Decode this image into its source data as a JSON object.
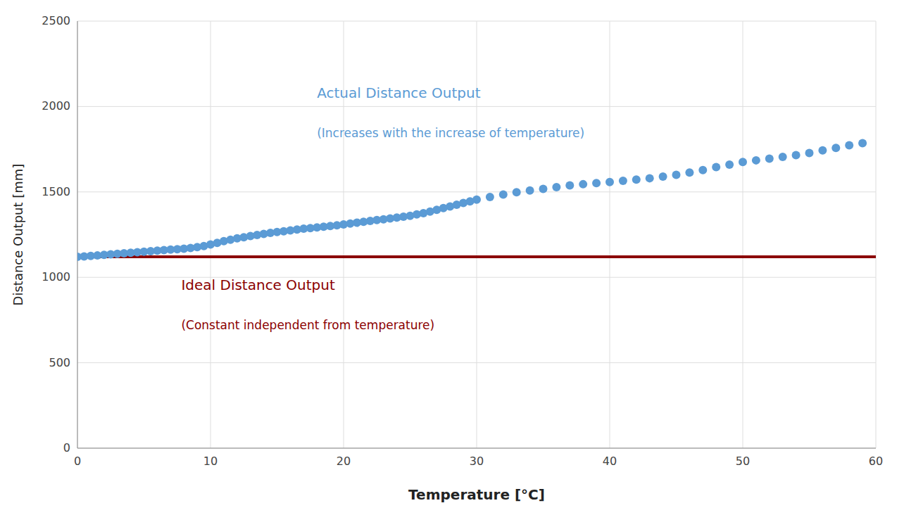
{
  "chart_data": {
    "type": "scatter",
    "xlabel": "Temperature [°C]",
    "ylabel": "Distance Output [mm]",
    "xlim": [
      0,
      60
    ],
    "ylim": [
      0,
      2500
    ],
    "xticks": [
      0,
      10,
      20,
      30,
      40,
      50,
      60
    ],
    "yticks": [
      0,
      500,
      1000,
      1500,
      2000,
      2500
    ],
    "grid": true,
    "x": [
      0.0,
      0.5,
      1.0,
      1.5,
      2.0,
      2.5,
      3.0,
      3.5,
      4.0,
      4.5,
      5.0,
      5.5,
      6.0,
      6.5,
      7.0,
      7.5,
      8.0,
      8.5,
      9.0,
      9.5,
      10.0,
      10.5,
      11.0,
      11.5,
      12.0,
      12.5,
      13.0,
      13.5,
      14.0,
      14.5,
      15.0,
      15.5,
      16.0,
      16.5,
      17.0,
      17.5,
      18.0,
      18.5,
      19.0,
      19.5,
      20.0,
      20.5,
      21.0,
      21.5,
      22.0,
      22.5,
      23.0,
      23.5,
      24.0,
      24.5,
      25.0,
      25.5,
      26.0,
      26.5,
      27.0,
      27.5,
      28.0,
      28.5,
      29.0,
      29.5,
      30.0,
      31.0,
      32.0,
      33.0,
      34.0,
      35.0,
      36.0,
      37.0,
      38.0,
      39.0,
      40.0,
      41.0,
      42.0,
      43.0,
      44.0,
      45.0,
      46.0,
      47.0,
      48.0,
      49.0,
      50.0,
      51.0,
      52.0,
      53.0,
      54.0,
      55.0,
      56.0,
      57.0,
      58.0,
      59.0
    ],
    "series": [
      {
        "color": "#5B9BD5",
        "marker": "circle",
        "values": [
          1120,
          1122,
          1125,
          1128,
          1132,
          1135,
          1138,
          1141,
          1144,
          1147,
          1150,
          1153,
          1156,
          1159,
          1162,
          1165,
          1168,
          1172,
          1177,
          1183,
          1192,
          1202,
          1212,
          1220,
          1228,
          1235,
          1242,
          1248,
          1254,
          1260,
          1265,
          1270,
          1275,
          1280,
          1285,
          1288,
          1292,
          1296,
          1300,
          1305,
          1310,
          1315,
          1320,
          1325,
          1330,
          1335,
          1340,
          1345,
          1350,
          1355,
          1360,
          1368,
          1376,
          1385,
          1395,
          1405,
          1415,
          1425,
          1435,
          1445,
          1455,
          1470,
          1485,
          1498,
          1508,
          1518,
          1528,
          1538,
          1545,
          1552,
          1558,
          1565,
          1572,
          1580,
          1590,
          1600,
          1613,
          1628,
          1645,
          1660,
          1675,
          1685,
          1695,
          1705,
          1715,
          1728,
          1743,
          1758,
          1773,
          1785
        ]
      }
    ],
    "reference_lines": [
      {
        "value": 1120,
        "color": "#8B0000"
      }
    ],
    "annotations": [
      {
        "text": "Actual Distance Output",
        "color": "#5B9BD5"
      },
      {
        "text": "(Increases with the increase of temperature)",
        "color": "#5B9BD5"
      },
      {
        "text": "Ideal Distance Output",
        "color": "#8B0000"
      },
      {
        "text": "(Constant independent from temperature)",
        "color": "#8B0000"
      }
    ]
  }
}
